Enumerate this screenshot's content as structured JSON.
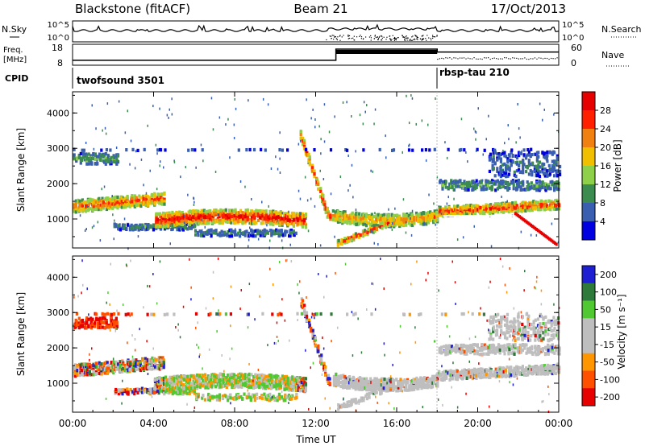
{
  "header": {
    "title": "Blackstone (fitACF)",
    "beam": "Beam 21",
    "date": "17/Oct/2013"
  },
  "status_panels": {
    "nsky_label": "N.Sky",
    "nsearch_label": "N.Search",
    "noise_ticks": [
      "10^5",
      "10^0"
    ],
    "freq_label": "Freq.",
    "freq_unit": "[MHz]",
    "freq_ticks": [
      "18",
      "8"
    ],
    "nave_label": "Nave",
    "nave_ticks": [
      "60",
      "0"
    ],
    "cpid_label": "CPID",
    "cpid_segments": [
      {
        "name": "twofsound 3501",
        "start": "00:00",
        "end": "18:00"
      },
      {
        "name": "rbsp-tau 210",
        "start": "18:00",
        "end": "24:00"
      }
    ]
  },
  "colors": {
    "power": [
      "#0000e0",
      "#3a5fb0",
      "#3c8c50",
      "#8fd04a",
      "#f0c000",
      "#f08010",
      "#ff2000",
      "#e60000"
    ],
    "velocity": [
      "#1e1ed2",
      "#2e7a3a",
      "#50c832",
      "#bebebe",
      "#bebebe",
      "#ff9600",
      "#ff5000",
      "#e60000"
    ]
  },
  "chart_data": [
    {
      "type": "heatmap",
      "parameter": "Power",
      "ylabel": "Slant Range [km]",
      "yticks": [
        "1000",
        "2000",
        "3000",
        "4000"
      ],
      "ylim": [
        180,
        4600
      ],
      "xlim": [
        "00:00",
        "24:00"
      ],
      "colorbar_label": "Power [dB]",
      "colorbar_ticks": [
        "4",
        "8",
        "12",
        "16",
        "20",
        "24",
        "28"
      ],
      "colorbar_range": [
        0,
        32
      ]
    },
    {
      "type": "heatmap",
      "parameter": "Velocity",
      "ylabel": "Slant Range [km]",
      "yticks": [
        "1000",
        "2000",
        "3000",
        "4000"
      ],
      "ylim": [
        180,
        4600
      ],
      "xlabel": "Time UT",
      "xticks": [
        "00:00",
        "04:00",
        "08:00",
        "12:00",
        "16:00",
        "20:00",
        "00:00"
      ],
      "xlim": [
        "00:00",
        "24:00"
      ],
      "colorbar_label": "Velocity [m s⁻¹]",
      "colorbar_ticks": [
        "200",
        "100",
        "50",
        "15",
        "-15",
        "-50",
        "-100",
        "-200"
      ],
      "colorbar_range": [
        -250,
        250
      ]
    }
  ]
}
